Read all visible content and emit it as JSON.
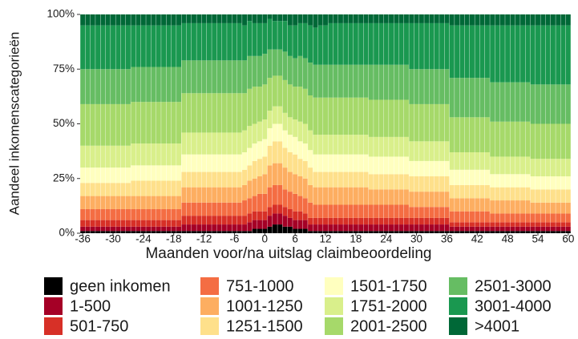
{
  "chart_data": {
    "type": "stacked_bar",
    "xlabel": "Maanden voor/na uitslag claimbeoordeling",
    "ylabel": "Aandeel inkomenscategorieën",
    "legend_position": "bottom",
    "grid": false,
    "xlim": [
      -36.5,
      60.5
    ],
    "xticks": [
      -36,
      -30,
      -24,
      -18,
      -12,
      -6,
      0,
      6,
      12,
      18,
      24,
      30,
      36,
      42,
      48,
      54,
      60
    ],
    "ylim": [
      0,
      100
    ],
    "yticks": [
      {
        "value": 0,
        "label": "0%"
      },
      {
        "value": 25,
        "label": "25%"
      },
      {
        "value": 50,
        "label": "50%"
      },
      {
        "value": 75,
        "label": "75%"
      },
      {
        "value": 100,
        "label": "100%"
      }
    ],
    "x": [
      -36,
      -35,
      -34,
      -33,
      -32,
      -31,
      -30,
      -29,
      -28,
      -27,
      -26,
      -25,
      -24,
      -23,
      -22,
      -21,
      -20,
      -19,
      -18,
      -17,
      -16,
      -15,
      -14,
      -13,
      -12,
      -11,
      -10,
      -9,
      -8,
      -7,
      -6,
      -5,
      -4,
      -3,
      -2,
      -1,
      0,
      1,
      2,
      3,
      4,
      5,
      6,
      7,
      8,
      9,
      10,
      11,
      12,
      13,
      14,
      15,
      16,
      17,
      18,
      19,
      20,
      21,
      22,
      23,
      24,
      25,
      26,
      27,
      28,
      29,
      30,
      31,
      32,
      33,
      34,
      35,
      36,
      37,
      38,
      39,
      40,
      41,
      42,
      43,
      44,
      45,
      46,
      47,
      48,
      49,
      50,
      51,
      52,
      53,
      54,
      55,
      56,
      57,
      58,
      59,
      60
    ],
    "series": [
      {
        "name": "geen inkomen",
        "color": "#000000",
        "values": [
          1,
          1,
          1,
          1,
          1,
          1,
          1,
          1,
          1,
          1,
          1,
          1,
          1,
          1,
          1,
          1,
          1,
          1,
          1,
          1,
          1,
          1,
          1,
          1,
          1,
          1,
          1,
          1,
          1,
          1,
          1,
          1,
          1,
          1,
          2,
          2,
          2,
          3,
          4,
          4,
          3,
          3,
          2,
          2,
          2,
          1,
          1,
          1,
          1,
          1,
          1,
          1,
          1,
          1,
          1,
          1,
          1,
          1,
          1,
          1,
          1,
          1,
          1,
          1,
          1,
          1,
          1,
          1,
          1,
          1,
          1,
          1,
          1,
          1,
          1,
          1,
          1,
          1,
          1,
          1,
          1,
          1,
          1,
          1,
          1,
          1,
          1,
          1,
          1,
          1,
          1,
          1,
          1,
          1,
          1,
          1,
          1
        ]
      },
      {
        "name": "1-500",
        "color": "#a50026",
        "values": [
          2,
          2,
          2,
          2,
          2,
          2,
          2,
          2,
          2,
          2,
          2,
          2,
          2,
          2,
          2,
          2,
          2,
          2,
          2,
          2,
          3,
          3,
          3,
          3,
          3,
          3,
          3,
          3,
          3,
          3,
          3,
          3,
          3,
          4,
          4,
          4,
          4,
          5,
          5,
          5,
          5,
          4,
          4,
          4,
          4,
          3,
          3,
          3,
          3,
          3,
          3,
          3,
          3,
          3,
          3,
          3,
          3,
          3,
          3,
          3,
          3,
          3,
          3,
          3,
          3,
          3,
          3,
          3,
          3,
          3,
          3,
          3,
          3,
          2,
          2,
          2,
          2,
          2,
          2,
          2,
          2,
          2,
          2,
          2,
          2,
          2,
          2,
          2,
          2,
          2,
          2,
          2,
          2,
          2,
          2,
          2,
          2
        ]
      },
      {
        "name": "501-750",
        "color": "#d73027",
        "values": [
          3,
          3,
          3,
          3,
          3,
          3,
          3,
          3,
          3,
          3,
          3,
          3,
          3,
          3,
          3,
          3,
          3,
          3,
          3,
          3,
          4,
          4,
          4,
          4,
          4,
          4,
          4,
          4,
          4,
          4,
          4,
          4,
          4,
          4,
          4,
          4,
          4,
          4,
          4,
          4,
          4,
          4,
          4,
          4,
          3,
          3,
          3,
          3,
          3,
          3,
          3,
          3,
          3,
          3,
          3,
          3,
          3,
          3,
          3,
          3,
          3,
          3,
          3,
          3,
          3,
          3,
          3,
          3,
          3,
          3,
          3,
          3,
          3,
          2,
          2,
          2,
          2,
          2,
          2,
          2,
          2,
          2,
          2,
          2,
          2,
          2,
          2,
          2,
          2,
          2,
          2,
          2,
          2,
          2,
          2,
          2,
          2
        ]
      },
      {
        "name": "751-1000",
        "color": "#f46d43",
        "values": [
          5,
          5,
          5,
          5,
          5,
          5,
          5,
          5,
          5,
          5,
          5,
          5,
          5,
          5,
          5,
          5,
          5,
          5,
          5,
          5,
          6,
          6,
          6,
          6,
          6,
          6,
          6,
          6,
          6,
          6,
          6,
          6,
          7,
          7,
          7,
          8,
          8,
          9,
          9,
          9,
          8,
          8,
          8,
          7,
          7,
          7,
          6,
          6,
          6,
          6,
          6,
          6,
          6,
          6,
          6,
          6,
          6,
          6,
          6,
          6,
          6,
          6,
          6,
          6,
          6,
          5,
          5,
          5,
          5,
          5,
          5,
          5,
          5,
          5,
          5,
          5,
          5,
          5,
          5,
          5,
          5,
          4,
          4,
          4,
          4,
          4,
          4,
          4,
          4,
          4,
          4,
          4,
          4,
          4,
          4,
          4,
          4
        ]
      },
      {
        "name": "1001-1250",
        "color": "#fdae61",
        "values": [
          6,
          6,
          6,
          6,
          6,
          6,
          6,
          6,
          6,
          6,
          6,
          6,
          6,
          6,
          6,
          6,
          6,
          6,
          6,
          6,
          7,
          7,
          7,
          7,
          7,
          7,
          7,
          7,
          7,
          7,
          7,
          7,
          7,
          8,
          8,
          8,
          9,
          10,
          10,
          10,
          10,
          9,
          9,
          9,
          9,
          8,
          8,
          8,
          8,
          8,
          8,
          8,
          8,
          8,
          8,
          8,
          8,
          7,
          7,
          7,
          7,
          7,
          7,
          7,
          7,
          7,
          7,
          7,
          7,
          7,
          7,
          7,
          7,
          6,
          6,
          6,
          6,
          6,
          6,
          6,
          6,
          6,
          6,
          6,
          6,
          6,
          6,
          6,
          6,
          5,
          5,
          5,
          5,
          5,
          5,
          5,
          5
        ]
      },
      {
        "name": "1251-1500",
        "color": "#fee08b",
        "values": [
          6,
          6,
          6,
          6,
          6,
          6,
          6,
          6,
          6,
          6,
          7,
          7,
          7,
          7,
          7,
          7,
          7,
          7,
          7,
          7,
          7,
          7,
          7,
          7,
          7,
          7,
          7,
          7,
          7,
          7,
          7,
          7,
          7,
          7,
          8,
          8,
          8,
          9,
          10,
          10,
          9,
          9,
          9,
          8,
          8,
          8,
          7,
          7,
          7,
          7,
          7,
          7,
          7,
          7,
          7,
          7,
          7,
          7,
          7,
          7,
          7,
          7,
          7,
          7,
          7,
          7,
          7,
          7,
          7,
          7,
          7,
          7,
          7,
          6,
          6,
          6,
          6,
          6,
          6,
          6,
          6,
          6,
          6,
          6,
          6,
          6,
          6,
          6,
          6,
          6,
          6,
          6,
          6,
          6,
          6,
          6,
          6
        ]
      },
      {
        "name": "1501-1750",
        "color": "#ffffbf",
        "values": [
          7,
          7,
          7,
          7,
          7,
          7,
          7,
          7,
          7,
          7,
          7,
          7,
          7,
          7,
          7,
          7,
          7,
          7,
          7,
          7,
          8,
          8,
          8,
          8,
          8,
          8,
          8,
          8,
          8,
          8,
          8,
          8,
          8,
          8,
          8,
          8,
          8,
          8,
          8,
          8,
          8,
          8,
          8,
          8,
          8,
          8,
          8,
          8,
          8,
          8,
          8,
          8,
          8,
          8,
          8,
          8,
          8,
          8,
          8,
          8,
          8,
          8,
          8,
          8,
          8,
          7,
          7,
          7,
          7,
          7,
          7,
          7,
          7,
          7,
          7,
          7,
          7,
          7,
          7,
          7,
          7,
          6,
          6,
          6,
          6,
          6,
          6,
          6,
          6,
          6,
          6,
          6,
          6,
          6,
          6,
          6,
          6
        ]
      },
      {
        "name": "1751-2000",
        "color": "#d9ef8b",
        "values": [
          10,
          10,
          10,
          10,
          10,
          10,
          10,
          10,
          10,
          10,
          10,
          10,
          10,
          10,
          10,
          10,
          10,
          10,
          10,
          10,
          10,
          10,
          10,
          10,
          10,
          10,
          10,
          10,
          10,
          10,
          10,
          10,
          10,
          10,
          9,
          9,
          9,
          8,
          8,
          8,
          8,
          8,
          8,
          9,
          9,
          9,
          9,
          9,
          9,
          9,
          9,
          9,
          9,
          9,
          9,
          9,
          9,
          9,
          9,
          9,
          9,
          9,
          9,
          9,
          9,
          9,
          9,
          9,
          9,
          9,
          9,
          9,
          9,
          8,
          8,
          8,
          8,
          8,
          8,
          8,
          8,
          8,
          8,
          8,
          8,
          8,
          8,
          8,
          8,
          8,
          8,
          8,
          8,
          8,
          8,
          8,
          8
        ]
      },
      {
        "name": "2001-2500",
        "color": "#a6d96a",
        "values": [
          19,
          19,
          19,
          19,
          19,
          19,
          19,
          19,
          19,
          19,
          19,
          19,
          19,
          19,
          19,
          19,
          19,
          19,
          19,
          19,
          18,
          18,
          18,
          18,
          18,
          18,
          18,
          18,
          18,
          18,
          18,
          18,
          17,
          17,
          17,
          16,
          16,
          15,
          14,
          14,
          15,
          15,
          15,
          16,
          16,
          16,
          17,
          17,
          17,
          17,
          17,
          17,
          17,
          17,
          17,
          17,
          17,
          17,
          17,
          17,
          17,
          17,
          17,
          17,
          17,
          17,
          17,
          17,
          17,
          17,
          17,
          17,
          17,
          16,
          16,
          16,
          16,
          16,
          16,
          16,
          16,
          16,
          16,
          16,
          16,
          16,
          16,
          16,
          16,
          16,
          16,
          16,
          16,
          16,
          16,
          16,
          16
        ]
      },
      {
        "name": "2501-3000",
        "color": "#66bd63",
        "values": [
          16,
          16,
          16,
          16,
          16,
          16,
          16,
          16,
          16,
          16,
          16,
          16,
          16,
          16,
          16,
          16,
          16,
          16,
          16,
          16,
          15,
          15,
          15,
          15,
          15,
          15,
          15,
          15,
          15,
          15,
          15,
          15,
          15,
          15,
          14,
          14,
          14,
          13,
          12,
          12,
          13,
          13,
          13,
          14,
          14,
          15,
          15,
          15,
          15,
          15,
          15,
          15,
          15,
          15,
          15,
          15,
          15,
          16,
          16,
          16,
          16,
          16,
          16,
          16,
          16,
          16,
          16,
          16,
          16,
          16,
          16,
          16,
          16,
          18,
          18,
          18,
          18,
          18,
          18,
          18,
          18,
          18,
          18,
          18,
          18,
          18,
          18,
          18,
          18,
          18,
          18,
          18,
          18,
          18,
          18,
          18,
          18
        ]
      },
      {
        "name": "3001-4000",
        "color": "#1a9850",
        "values": [
          20,
          20,
          20,
          20,
          20,
          20,
          20,
          20,
          20,
          20,
          19,
          19,
          19,
          19,
          19,
          19,
          19,
          19,
          19,
          19,
          17,
          17,
          17,
          17,
          17,
          17,
          17,
          17,
          17,
          17,
          17,
          17,
          16,
          16,
          15,
          15,
          14,
          14,
          13,
          13,
          14,
          14,
          15,
          15,
          16,
          17,
          17,
          18,
          18,
          19,
          19,
          19,
          19,
          19,
          19,
          19,
          19,
          19,
          19,
          19,
          19,
          19,
          19,
          19,
          19,
          21,
          21,
          21,
          21,
          21,
          21,
          21,
          21,
          24,
          24,
          24,
          24,
          24,
          24,
          24,
          24,
          26,
          26,
          26,
          26,
          26,
          26,
          26,
          26,
          27,
          27,
          27,
          27,
          27,
          27,
          27,
          27
        ]
      },
      {
        "name": ">4001",
        "color": "#006837",
        "values": [
          5,
          5,
          5,
          5,
          5,
          5,
          5,
          5,
          5,
          5,
          5,
          5,
          5,
          5,
          5,
          5,
          5,
          5,
          5,
          5,
          4,
          4,
          4,
          4,
          4,
          4,
          4,
          4,
          4,
          4,
          4,
          4,
          5,
          3,
          4,
          4,
          4,
          2,
          3,
          3,
          3,
          5,
          5,
          4,
          4,
          5,
          6,
          5,
          5,
          4,
          4,
          4,
          4,
          4,
          4,
          4,
          4,
          4,
          4,
          4,
          4,
          4,
          4,
          4,
          4,
          4,
          4,
          4,
          4,
          4,
          4,
          4,
          4,
          5,
          5,
          5,
          5,
          5,
          5,
          5,
          5,
          5,
          5,
          5,
          5,
          5,
          5,
          5,
          5,
          5,
          5,
          5,
          5,
          5,
          5,
          5,
          5
        ]
      }
    ]
  }
}
